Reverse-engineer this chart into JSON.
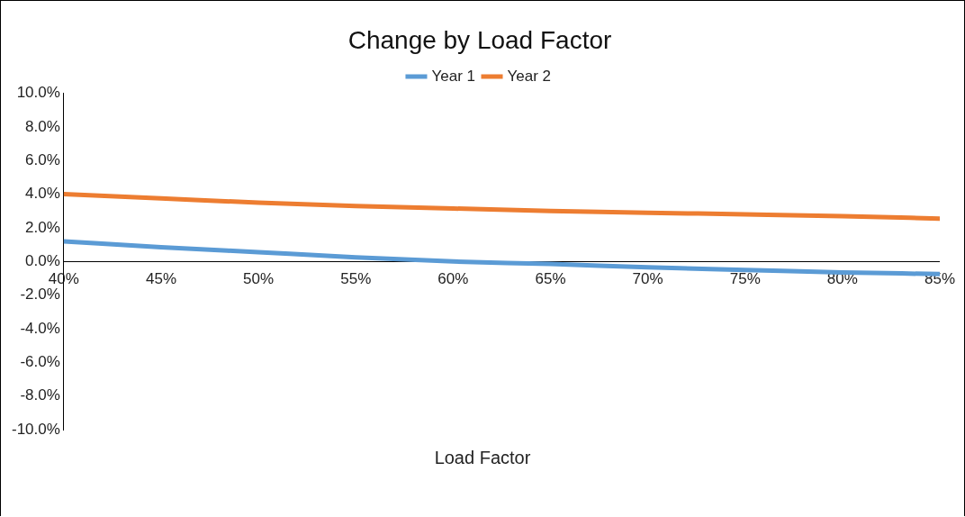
{
  "chart_data": {
    "type": "line",
    "title": "Change by Load Factor",
    "xlabel": "Load Factor",
    "x": [
      40,
      45,
      50,
      55,
      60,
      65,
      70,
      75,
      80,
      85
    ],
    "series": [
      {
        "name": "Year 1",
        "color": "#5b9bd5",
        "values": [
          1.2,
          0.85,
          0.55,
          0.25,
          0.0,
          -0.15,
          -0.35,
          -0.5,
          -0.65,
          -0.75
        ]
      },
      {
        "name": "Year 2",
        "color": "#ed7d31",
        "values": [
          4.0,
          3.75,
          3.5,
          3.3,
          3.15,
          3.0,
          2.9,
          2.8,
          2.7,
          2.55
        ]
      }
    ],
    "xlim": [
      40,
      85
    ],
    "xticks": [
      {
        "value": 40,
        "label": "40%"
      },
      {
        "value": 45,
        "label": "45%"
      },
      {
        "value": 50,
        "label": "50%"
      },
      {
        "value": 55,
        "label": "55%"
      },
      {
        "value": 60,
        "label": "60%"
      },
      {
        "value": 65,
        "label": "65%"
      },
      {
        "value": 70,
        "label": "70%"
      },
      {
        "value": 75,
        "label": "75%"
      },
      {
        "value": 80,
        "label": "80%"
      },
      {
        "value": 85,
        "label": "85%"
      }
    ],
    "ylim": [
      -10,
      10
    ],
    "yticks": [
      {
        "value": -10,
        "label": "-10.0%"
      },
      {
        "value": -8,
        "label": "-8.0%"
      },
      {
        "value": -6,
        "label": "-6.0%"
      },
      {
        "value": -4,
        "label": "-4.0%"
      },
      {
        "value": -2,
        "label": "-2.0%"
      },
      {
        "value": 0,
        "label": "0.0%"
      },
      {
        "value": 2,
        "label": "2.0%"
      },
      {
        "value": 4,
        "label": "4.0%"
      },
      {
        "value": 6,
        "label": "6.0%"
      },
      {
        "value": 8,
        "label": "8.0%"
      },
      {
        "value": 10,
        "label": "10.0%"
      }
    ],
    "grid": false,
    "legend": "top",
    "marker": "none",
    "line_style": "solid"
  }
}
